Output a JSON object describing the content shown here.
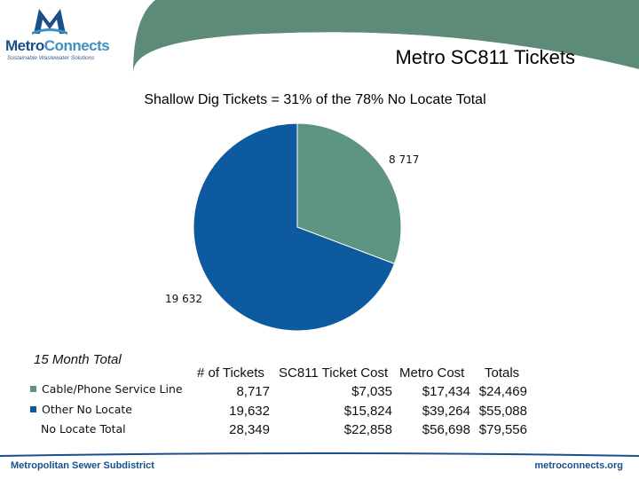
{
  "header": {
    "logo_name_a": "Metro",
    "logo_name_b": "Connects",
    "logo_tagline": "Sustainable Wastewater Solutions",
    "title": "Metro SC811 Tickets"
  },
  "colors": {
    "header_band": "#5e8b78",
    "series_cable": "#5e9482",
    "series_other": "#0d5a9e",
    "brand_blue": "#1b4f8a"
  },
  "chart_data": {
    "type": "pie",
    "title": "Shallow Dig Tickets = 31% of the 78% No Locate Total",
    "labels": [
      "Cable/Phone Service Line",
      "Other No Locate"
    ],
    "values": [
      8717,
      19632
    ],
    "data_labels": [
      "8 717",
      "19 632"
    ],
    "legend_position": "bottom-left"
  },
  "table": {
    "caption": "15 Month Total",
    "headers": [
      "# of Tickets",
      "SC811 Ticket Cost",
      "Metro Cost",
      "Totals"
    ],
    "rows": [
      {
        "label": "Cable/Phone Service Line",
        "cells": [
          "8,717",
          "$7,035",
          "$17,434",
          "$24,469"
        ]
      },
      {
        "label": "Other No Locate",
        "cells": [
          "19,632",
          "$15,824",
          "$39,264",
          "$55,088"
        ]
      },
      {
        "label": "No Locate Total",
        "cells": [
          "28,349",
          "$22,858",
          "$56,698",
          "$79,556"
        ]
      }
    ]
  },
  "footer": {
    "left": "Metropolitan Sewer Subdistrict",
    "right": "metroconnects.org"
  }
}
